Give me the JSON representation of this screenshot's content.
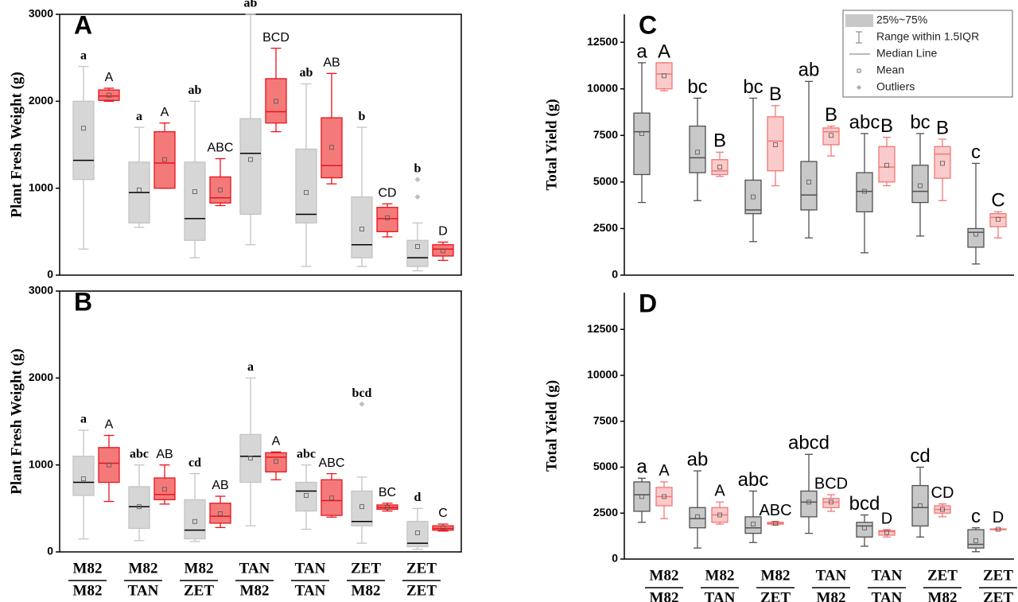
{
  "chart_data": [
    {
      "type": "box",
      "panel": "A",
      "y_label": "Plant Fresh Weight (g)",
      "ylim": [
        0,
        3000
      ],
      "yticks": [
        0,
        1000,
        2000,
        3000
      ],
      "series": [
        {
          "fill": "#d6d6d6",
          "stroke": "#c4c4c4",
          "median_color": "#000000",
          "boxes": [
            {
              "low": 300,
              "q1": 1100,
              "median": 1320,
              "q3": 2000,
              "high": 2400,
              "mean": 1690,
              "letter": "a"
            },
            {
              "low": 550,
              "q1": 600,
              "median": 950,
              "q3": 1300,
              "high": 1700,
              "mean": 980,
              "letter": "a"
            },
            {
              "low": 200,
              "q1": 400,
              "median": 650,
              "q3": 1300,
              "high": 2000,
              "mean": 960,
              "letter": "ab"
            },
            {
              "low": 350,
              "q1": 700,
              "median": 1400,
              "q3": 1800,
              "high": 3000,
              "mean": 1330,
              "letter": "ab"
            },
            {
              "low": 100,
              "q1": 600,
              "median": 700,
              "q3": 1450,
              "high": 2200,
              "mean": 950,
              "letter": "ab"
            },
            {
              "low": 100,
              "q1": 200,
              "median": 350,
              "q3": 900,
              "high": 1700,
              "mean": 530,
              "letter": "b"
            },
            {
              "low": 50,
              "q1": 100,
              "median": 200,
              "q3": 400,
              "high": 600,
              "mean": 330,
              "outliers": [
                900,
                1100
              ],
              "letter": "b"
            }
          ]
        },
        {
          "fill": "#f47a7a",
          "stroke": "#e8141b",
          "median_color": "#e8141b",
          "boxes": [
            {
              "low": 2000,
              "q1": 2010,
              "median": 2060,
              "q3": 2130,
              "high": 2150,
              "mean": 2070,
              "letter": "A"
            },
            {
              "low": 1000,
              "q1": 1000,
              "median": 1290,
              "q3": 1650,
              "high": 1750,
              "mean": 1330,
              "letter": "A"
            },
            {
              "low": 800,
              "q1": 830,
              "median": 890,
              "q3": 1130,
              "high": 1340,
              "mean": 980,
              "letter": "ABC"
            },
            {
              "low": 1650,
              "q1": 1750,
              "median": 1880,
              "q3": 2260,
              "high": 2610,
              "mean": 2000,
              "letter": "BCD"
            },
            {
              "low": 1050,
              "q1": 1120,
              "median": 1260,
              "q3": 1810,
              "high": 2320,
              "mean": 1470,
              "letter": "AB"
            },
            {
              "low": 440,
              "q1": 500,
              "median": 650,
              "q3": 780,
              "high": 820,
              "mean": 660,
              "letter": "CD"
            },
            {
              "low": 170,
              "q1": 220,
              "median": 300,
              "q3": 350,
              "high": 380,
              "mean": 280,
              "letter": "D"
            }
          ]
        }
      ]
    },
    {
      "type": "box",
      "panel": "B",
      "y_label": "Plant Fresh Weight (g)",
      "ylim": [
        0,
        3000
      ],
      "yticks": [
        0,
        1000,
        2000,
        3000
      ],
      "categories": [
        [
          "M82",
          "M82"
        ],
        [
          "M82",
          "TAN"
        ],
        [
          "M82",
          "ZET"
        ],
        [
          "TAN",
          "M82"
        ],
        [
          "TAN",
          "TAN"
        ],
        [
          "ZET",
          "M82"
        ],
        [
          "ZET",
          "ZET"
        ]
      ],
      "series": [
        {
          "fill": "#d6d6d6",
          "stroke": "#c4c4c4",
          "median_color": "#000000",
          "boxes": [
            {
              "low": 150,
              "q1": 650,
              "median": 800,
              "q3": 1100,
              "high": 1400,
              "mean": 840,
              "letter": "a"
            },
            {
              "low": 130,
              "q1": 270,
              "median": 520,
              "q3": 750,
              "high": 1000,
              "mean": 520,
              "letter": "abc"
            },
            {
              "low": 120,
              "q1": 150,
              "median": 250,
              "q3": 600,
              "high": 900,
              "mean": 350,
              "letter": "cd"
            },
            {
              "low": 300,
              "q1": 800,
              "median": 1100,
              "q3": 1350,
              "high": 2000,
              "mean": 1080,
              "letter": "a"
            },
            {
              "low": 260,
              "q1": 470,
              "median": 700,
              "q3": 800,
              "high": 1000,
              "mean": 650,
              "letter": "abc"
            },
            {
              "low": 100,
              "q1": 300,
              "median": 350,
              "q3": 700,
              "high": 860,
              "mean": 520,
              "outliers": [
                1700
              ],
              "letter": "bcd"
            },
            {
              "low": 30,
              "q1": 60,
              "median": 100,
              "q3": 350,
              "high": 500,
              "mean": 220,
              "letter": "d"
            }
          ]
        },
        {
          "fill": "#f47a7a",
          "stroke": "#e8141b",
          "median_color": "#e8141b",
          "boxes": [
            {
              "low": 580,
              "q1": 800,
              "median": 1020,
              "q3": 1200,
              "high": 1340,
              "mean": 1000,
              "letter": "A"
            },
            {
              "low": 550,
              "q1": 600,
              "median": 660,
              "q3": 850,
              "high": 1000,
              "mean": 720,
              "letter": "AB"
            },
            {
              "low": 280,
              "q1": 330,
              "median": 410,
              "q3": 560,
              "high": 640,
              "mean": 440,
              "letter": "AB"
            },
            {
              "low": 830,
              "q1": 920,
              "median": 1090,
              "q3": 1140,
              "high": 1150,
              "mean": 1040,
              "letter": "A"
            },
            {
              "low": 400,
              "q1": 420,
              "median": 590,
              "q3": 830,
              "high": 900,
              "mean": 620,
              "letter": "ABC"
            },
            {
              "low": 470,
              "q1": 490,
              "median": 510,
              "q3": 540,
              "high": 560,
              "mean": 510,
              "letter": "BC"
            },
            {
              "low": 240,
              "q1": 250,
              "median": 270,
              "q3": 300,
              "high": 320,
              "mean": 280,
              "letter": "C"
            }
          ]
        }
      ]
    },
    {
      "type": "box",
      "panel": "C",
      "y_label": "Total Yield (g)",
      "ylim": [
        0,
        14000
      ],
      "yticks": [
        0,
        2500,
        5000,
        7500,
        10000,
        12500
      ],
      "legend": [
        "25%~75%",
        "Range within 1.5IQR",
        "Median Line",
        "Mean",
        "Outliers"
      ],
      "series": [
        {
          "fill": "#c8c8c8",
          "stroke": "#505050",
          "median_color": "#505050",
          "boxes": [
            {
              "low": 3900,
              "q1": 5400,
              "median": 7700,
              "q3": 8700,
              "high": 11400,
              "mean": 7600,
              "letter": "a"
            },
            {
              "low": 4000,
              "q1": 5500,
              "median": 6300,
              "q3": 8000,
              "high": 9500,
              "mean": 6600,
              "letter": "bc"
            },
            {
              "low": 1800,
              "q1": 3300,
              "median": 3500,
              "q3": 5100,
              "high": 9500,
              "mean": 4200,
              "letter": "bc"
            },
            {
              "low": 2000,
              "q1": 3500,
              "median": 4300,
              "q3": 6100,
              "high": 10400,
              "mean": 5000,
              "letter": "ab"
            },
            {
              "low": 1200,
              "q1": 3400,
              "median": 4500,
              "q3": 5500,
              "high": 7600,
              "mean": 4500,
              "letter": "abc"
            },
            {
              "low": 2100,
              "q1": 3900,
              "median": 4500,
              "q3": 5900,
              "high": 7600,
              "mean": 4800,
              "letter": "bc"
            },
            {
              "low": 600,
              "q1": 1500,
              "median": 2300,
              "q3": 2500,
              "high": 6000,
              "mean": 2200,
              "letter": "c"
            }
          ]
        },
        {
          "fill": "#fbcaca",
          "stroke": "#f07878",
          "median_color": "#f07878",
          "boxes": [
            {
              "low": 9900,
              "q1": 10000,
              "median": 10800,
              "q3": 11400,
              "high": 11400,
              "mean": 10700,
              "letter": "A"
            },
            {
              "low": 5300,
              "q1": 5400,
              "median": 5600,
              "q3": 6200,
              "high": 6600,
              "mean": 5800,
              "letter": "B"
            },
            {
              "low": 4800,
              "q1": 5600,
              "median": 7200,
              "q3": 8500,
              "high": 9100,
              "mean": 7000,
              "letter": "B"
            },
            {
              "low": 6400,
              "q1": 7000,
              "median": 7700,
              "q3": 7900,
              "high": 8000,
              "mean": 7500,
              "letter": "B"
            },
            {
              "low": 4800,
              "q1": 5000,
              "median": 5800,
              "q3": 6900,
              "high": 7400,
              "mean": 5900,
              "letter": "B"
            },
            {
              "low": 4000,
              "q1": 5200,
              "median": 6500,
              "q3": 6900,
              "high": 7300,
              "mean": 6000,
              "letter": "B"
            },
            {
              "low": 2000,
              "q1": 2600,
              "median": 3100,
              "q3": 3300,
              "high": 3400,
              "mean": 3000,
              "letter": "C"
            }
          ]
        }
      ]
    },
    {
      "type": "box",
      "panel": "D",
      "y_label": "Total Yield (g)",
      "ylim": [
        0,
        14500
      ],
      "yticks": [
        0,
        2500,
        5000,
        7500,
        10000,
        12500
      ],
      "categories": [
        [
          "M82",
          "M82"
        ],
        [
          "M82",
          "TAN"
        ],
        [
          "M82",
          "ZET"
        ],
        [
          "TAN",
          "M82"
        ],
        [
          "TAN",
          "TAN"
        ],
        [
          "ZET",
          "M82"
        ],
        [
          "ZET",
          "ZET"
        ]
      ],
      "series": [
        {
          "fill": "#c8c8c8",
          "stroke": "#505050",
          "median_color": "#505050",
          "boxes": [
            {
              "low": 2000,
              "q1": 2600,
              "median": 3500,
              "q3": 4200,
              "high": 4400,
              "mean": 3400,
              "letter": "a"
            },
            {
              "low": 600,
              "q1": 1700,
              "median": 2200,
              "q3": 2800,
              "high": 4800,
              "mean": 2300,
              "letter": "ab"
            },
            {
              "low": 900,
              "q1": 1400,
              "median": 1700,
              "q3": 2300,
              "high": 3700,
              "mean": 1900,
              "letter": "abc"
            },
            {
              "low": 1400,
              "q1": 2300,
              "median": 3100,
              "q3": 3700,
              "high": 5700,
              "mean": 3100,
              "letter": "abcd"
            },
            {
              "low": 700,
              "q1": 1200,
              "median": 1800,
              "q3": 2000,
              "high": 2400,
              "mean": 1700,
              "letter": "bcd"
            },
            {
              "low": 1200,
              "q1": 1800,
              "median": 2800,
              "q3": 4000,
              "high": 5000,
              "mean": 2900,
              "letter": "cd"
            },
            {
              "low": 400,
              "q1": 600,
              "median": 800,
              "q3": 1600,
              "high": 1700,
              "mean": 1000,
              "letter": "c"
            }
          ]
        },
        {
          "fill": "#fbcaca",
          "stroke": "#f07878",
          "median_color": "#f07878",
          "boxes": [
            {
              "low": 2200,
              "q1": 2900,
              "median": 3400,
              "q3": 3900,
              "high": 4200,
              "mean": 3400,
              "letter": "A"
            },
            {
              "low": 1900,
              "q1": 2000,
              "median": 2400,
              "q3": 2800,
              "high": 3100,
              "mean": 2400,
              "letter": "A"
            },
            {
              "low": 1850,
              "q1": 1900,
              "median": 1950,
              "q3": 2000,
              "high": 2050,
              "mean": 1950,
              "letter": "ABC"
            },
            {
              "low": 2600,
              "q1": 2800,
              "median": 3100,
              "q3": 3300,
              "high": 3500,
              "mean": 3100,
              "letter": "BCD"
            },
            {
              "low": 1200,
              "q1": 1300,
              "median": 1500,
              "q3": 1550,
              "high": 1600,
              "mean": 1450,
              "letter": "D"
            },
            {
              "low": 2300,
              "q1": 2500,
              "median": 2700,
              "q3": 2900,
              "high": 3000,
              "mean": 2700,
              "letter": "CD"
            },
            {
              "low": 1580,
              "q1": 1600,
              "median": 1620,
              "q3": 1640,
              "high": 1650,
              "mean": 1620,
              "letter": "D"
            }
          ]
        }
      ]
    }
  ]
}
